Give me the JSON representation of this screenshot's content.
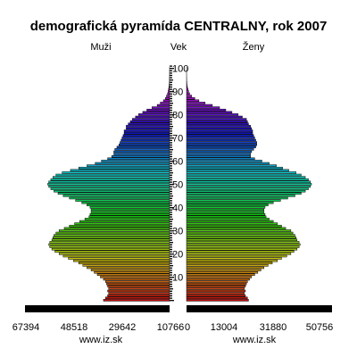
{
  "chart_data": {
    "type": "bar",
    "orientation": "horizontal",
    "title": "demografická pyramída CENTRALNY, rok 2007",
    "left_label": "Muži",
    "center_label": "Vek",
    "right_label": "Ženy",
    "age_ticks": [
      "10",
      "20",
      "30",
      "40",
      "50",
      "60",
      "70",
      "80",
      "90",
      "100"
    ],
    "x_ticks_left": [
      "67394",
      "48518",
      "29642",
      "10766"
    ],
    "x_ticks_right": [
      "0",
      "13004",
      "31880",
      "50756"
    ],
    "left_footer": "www.iz.sk",
    "right_footer": "www.iz.sk",
    "ages": [
      0,
      1,
      2,
      3,
      4,
      5,
      6,
      7,
      8,
      9,
      10,
      11,
      12,
      13,
      14,
      15,
      16,
      17,
      18,
      19,
      20,
      21,
      22,
      23,
      24,
      25,
      26,
      27,
      28,
      29,
      30,
      31,
      32,
      33,
      34,
      35,
      36,
      37,
      38,
      39,
      40,
      41,
      42,
      43,
      44,
      45,
      46,
      47,
      48,
      49,
      50,
      51,
      52,
      53,
      54,
      55,
      56,
      57,
      58,
      59,
      60,
      61,
      62,
      63,
      64,
      65,
      66,
      67,
      68,
      69,
      70,
      71,
      72,
      73,
      74,
      75,
      76,
      77,
      78,
      79,
      80,
      81,
      82,
      83,
      84,
      85,
      86,
      87,
      88,
      89,
      90,
      91,
      92,
      93,
      94,
      95,
      96,
      97,
      98,
      99,
      100,
      101
    ],
    "series": [
      {
        "name": "Muži",
        "values": [
          32000,
          31000,
          30000,
          29500,
          30000,
          29500,
          30000,
          30500,
          31000,
          32000,
          33500,
          35000,
          36500,
          38000,
          40000,
          42000,
          44000,
          46500,
          49000,
          51500,
          53500,
          55500,
          57000,
          58000,
          58500,
          58000,
          57000,
          56500,
          56000,
          55000,
          53500,
          51000,
          48500,
          46000,
          43500,
          41000,
          39000,
          38500,
          38000,
          38000,
          38500,
          40000,
          42500,
          45500,
          48500,
          51500,
          54000,
          56000,
          57500,
          58500,
          59000,
          58500,
          57500,
          56500,
          55000,
          52000,
          48000,
          44000,
          40000,
          36000,
          33000,
          30000,
          28000,
          27000,
          27000,
          26500,
          25500,
          24500,
          24000,
          23500,
          23000,
          22500,
          22000,
          22000,
          21000,
          21000,
          20000,
          19000,
          18000,
          16500,
          15000,
          13000,
          11000,
          8500,
          6000,
          4500,
          3000,
          2000,
          1500,
          1000,
          700,
          500,
          300,
          200,
          100,
          80,
          50,
          30,
          20,
          10,
          5,
          0
        ]
      },
      {
        "name": "Ženy",
        "values": [
          30000,
          29500,
          28500,
          28000,
          28500,
          28000,
          28500,
          29000,
          29500,
          30500,
          31500,
          33000,
          34500,
          36000,
          37500,
          39500,
          41500,
          44000,
          46000,
          48500,
          50500,
          52000,
          53500,
          54500,
          55000,
          54500,
          53500,
          53000,
          52500,
          51500,
          50500,
          48000,
          46000,
          44000,
          42000,
          40000,
          38500,
          38000,
          37500,
          37500,
          38000,
          39500,
          42000,
          45500,
          49000,
          52500,
          55500,
          57500,
          59000,
          60000,
          60500,
          60000,
          59000,
          57500,
          55500,
          53000,
          49500,
          46500,
          43500,
          40000,
          36500,
          33000,
          31000,
          31000,
          31500,
          32500,
          33500,
          34000,
          34000,
          33500,
          33000,
          32500,
          32000,
          32000,
          31500,
          31000,
          30000,
          29500,
          29000,
          27000,
          25000,
          22000,
          19000,
          16000,
          12500,
          9000,
          6000,
          4000,
          2500,
          1500,
          1000,
          700,
          400,
          250,
          150,
          80,
          50,
          30,
          20,
          10,
          5,
          0
        ]
      }
    ],
    "xlim_left": [
      0,
      70000
    ],
    "xlim_right": [
      0,
      70000
    ],
    "colors": {
      "bottom_bar": "#000000",
      "axis_stripe": "#000000"
    }
  }
}
